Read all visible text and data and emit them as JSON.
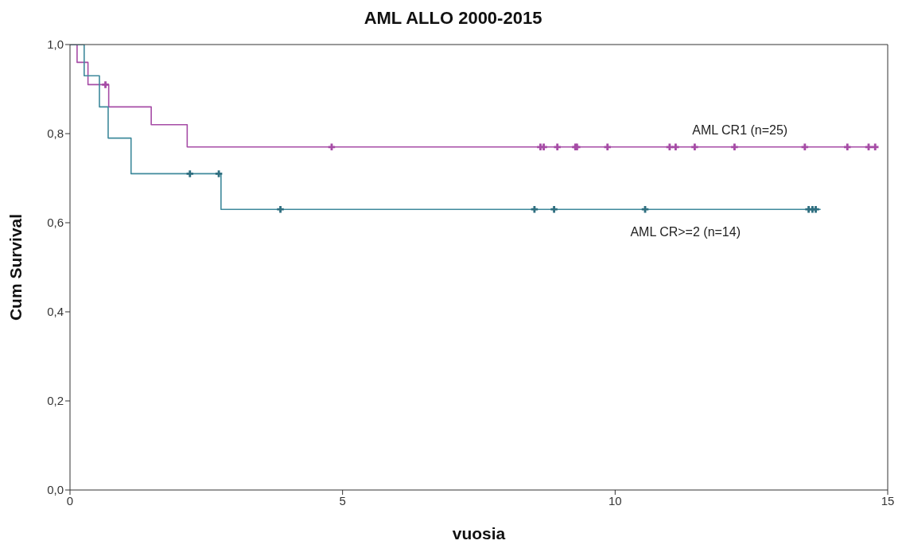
{
  "chart_data": {
    "type": "step",
    "title": "AML ALLO 2000-2015",
    "xlabel": "vuosia",
    "ylabel": "Cum Survival",
    "xlim": [
      0,
      15
    ],
    "xticks": [
      0,
      5,
      10,
      15
    ],
    "ylim": [
      0,
      1
    ],
    "yticks": [
      {
        "value": 0,
        "label": "0,0"
      },
      {
        "value": 0.2,
        "label": "0,2"
      },
      {
        "value": 0.4,
        "label": "0,4"
      },
      {
        "value": 0.6,
        "label": "0,6"
      },
      {
        "value": 0.8,
        "label": "0,8"
      },
      {
        "value": 1,
        "label": "1,0"
      }
    ],
    "grid": false,
    "legend": false,
    "line_style": "solid",
    "series": [
      {
        "name": "AML CR1 (n=25)",
        "color": "#a64ca6",
        "marker": "none",
        "x": [
          0,
          0.13,
          0.33,
          0.71,
          1.49,
          2.15,
          14.77
        ],
        "values": [
          1,
          0.96,
          0.91,
          0.86,
          0.82,
          0.77,
          0.77
        ]
      },
      {
        "name": "AML CR>=2 (n=14)",
        "color": "#3f8a9c",
        "marker": "none",
        "x": [
          0,
          0.26,
          0.54,
          0.7,
          1.12,
          2.77,
          13.77
        ],
        "values": [
          1,
          0.93,
          0.86,
          0.79,
          0.71,
          0.63,
          0.63
        ]
      },
      {
        "type": "scatter",
        "color": "#a64ca6",
        "marker": "cross",
        "x": [
          0.65,
          4.8,
          8.63,
          8.69,
          8.94,
          9.27,
          9.3,
          9.86,
          11.0,
          11.11,
          11.46,
          12.19,
          13.48,
          14.26,
          14.65,
          14.77
        ],
        "values": [
          0.91,
          0.77,
          0.77,
          0.77,
          0.77,
          0.77,
          0.77,
          0.77,
          0.77,
          0.77,
          0.77,
          0.77,
          0.77,
          0.77,
          0.77,
          0.77
        ]
      },
      {
        "type": "scatter",
        "color": "#2f6f80",
        "marker": "cross",
        "x": [
          2.2,
          2.73,
          3.86,
          8.52,
          8.88,
          10.55,
          13.55,
          13.62,
          13.68
        ],
        "values": [
          0.71,
          0.71,
          0.63,
          0.63,
          0.63,
          0.63,
          0.63,
          0.63,
          0.63
        ]
      }
    ]
  }
}
